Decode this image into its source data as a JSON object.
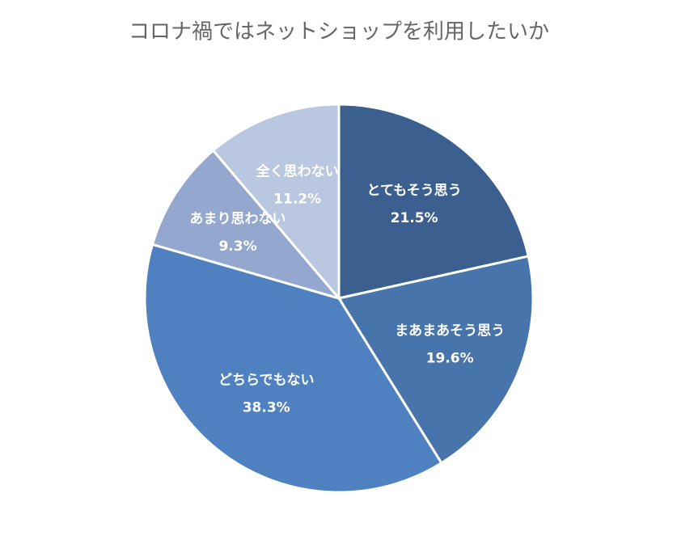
{
  "chart_data": {
    "type": "pie",
    "title": "コロナ禍ではネットショップを利用したいか",
    "categories": [
      "とてもそう思う",
      "まあまあそう思う",
      "どちらでもない",
      "あまり思わない",
      "全く思わない"
    ],
    "values": [
      21.5,
      19.6,
      38.3,
      9.3,
      11.2
    ],
    "value_labels": [
      "21.5%",
      "19.6%",
      "38.3%",
      "9.3%",
      "11.2%"
    ],
    "colors": [
      "#3b5f8e",
      "#4774aa",
      "#4f80bf",
      "#93a7cf",
      "#b9c7e1"
    ]
  }
}
